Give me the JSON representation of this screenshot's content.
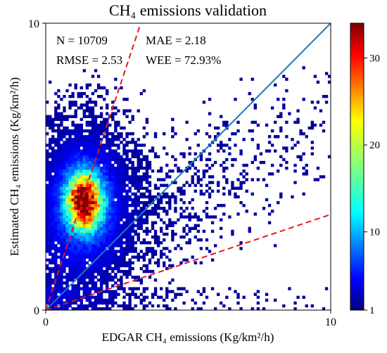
{
  "chart_data": {
    "type": "heatmap",
    "title": "CH₄ emissions validation",
    "xlabel": "EDGAR CH₄ emissions (Kg/km²/h)",
    "ylabel": "Estimated CH₄ emissions (Kg/km²/h)",
    "xlim": [
      0,
      10
    ],
    "ylim": [
      0,
      10
    ],
    "x_tick_labels": [
      "0",
      "10"
    ],
    "y_tick_labels": [
      "0",
      "10"
    ],
    "stats": [
      {
        "label": "N = 10709"
      },
      {
        "label": "MAE = 2.18"
      },
      {
        "label": "RMSE = 2.53"
      },
      {
        "label": "WEE = 72.93%"
      }
    ],
    "reference_lines": [
      {
        "name": "1:1",
        "slope": 1,
        "style": "solid",
        "color": "#1f77b4"
      },
      {
        "name": "upper bound",
        "slope": 3,
        "style": "dashed",
        "color": "#e41a1c"
      },
      {
        "name": "lower bound",
        "slope": 0.3333,
        "style": "dashed",
        "color": "#e41a1c"
      }
    ],
    "density_center": {
      "x": 1.35,
      "y": 3.8
    },
    "colorbar": {
      "min": 1,
      "max": 34,
      "ticks": [
        1,
        10,
        20,
        30
      ],
      "tick_labels": [
        "1",
        "10",
        "20",
        "30"
      ],
      "colormap": "jet"
    },
    "grid": false,
    "legend": "none"
  }
}
